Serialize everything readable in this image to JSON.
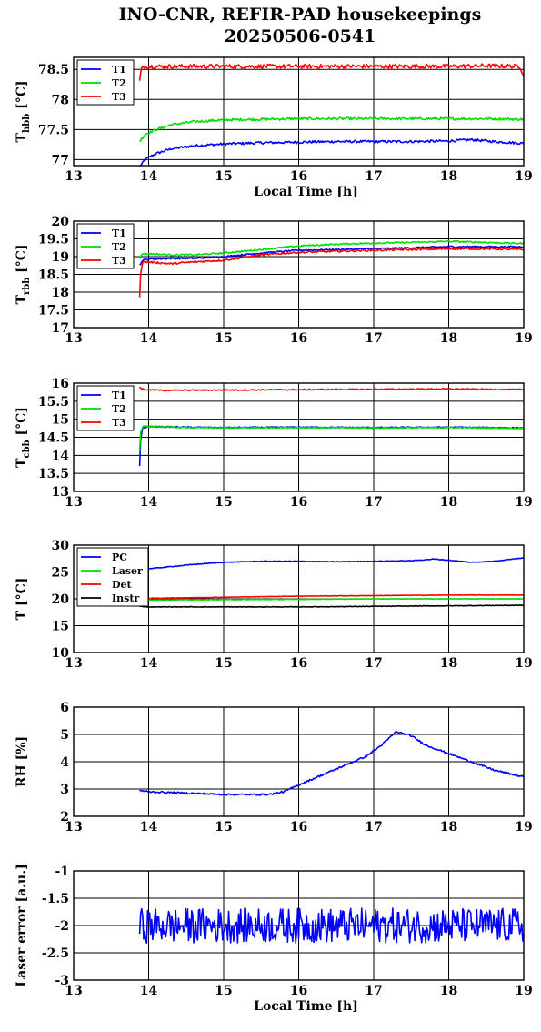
{
  "figure": {
    "title_line1": "INO-CNR, REFIR-PAD housekeepings",
    "title_line2": "20250506-0541"
  },
  "chart_data": [
    {
      "type": "line",
      "xlabel": "Local Time [h]",
      "ylabel": "T",
      "ylabel_sub": "hbb",
      "ylabel_unit": " [°C]",
      "xlim": [
        13,
        19
      ],
      "ylim": [
        76.9,
        78.7
      ],
      "x_ticks": [
        13,
        14,
        15,
        16,
        17,
        18,
        19
      ],
      "y_ticks": [
        77,
        77.5,
        78,
        78.5
      ],
      "y_tick_labels": [
        "77",
        "77.5",
        "78",
        "78.5"
      ],
      "grid": "y",
      "legend_position": "top-left",
      "colors": [
        "#0000ff",
        "#00dd00",
        "#ff0000"
      ],
      "series": [
        {
          "name": "T1",
          "x": [
            13.88,
            13.95,
            14.1,
            14.3,
            14.6,
            15,
            15.5,
            16,
            16.5,
            17,
            17.5,
            18,
            18.3,
            18.6,
            19
          ],
          "values": [
            76.87,
            77.0,
            77.1,
            77.18,
            77.23,
            77.26,
            77.28,
            77.29,
            77.3,
            77.3,
            77.3,
            77.31,
            77.33,
            77.3,
            77.27
          ],
          "noise": 0.02
        },
        {
          "name": "T2",
          "x": [
            13.88,
            13.95,
            14.1,
            14.3,
            14.6,
            15,
            15.5,
            16,
            16.5,
            17,
            17.5,
            18,
            18.5,
            19
          ],
          "values": [
            77.3,
            77.42,
            77.5,
            77.58,
            77.63,
            77.66,
            77.67,
            77.68,
            77.68,
            77.68,
            77.68,
            77.68,
            77.68,
            77.67
          ],
          "noise": 0.02
        },
        {
          "name": "T3",
          "x": [
            13.88,
            13.9,
            13.95,
            14.2,
            15,
            16,
            17,
            18,
            18.5,
            18.95,
            19
          ],
          "values": [
            78.3,
            78.5,
            78.55,
            78.55,
            78.55,
            78.55,
            78.55,
            78.55,
            78.56,
            78.55,
            78.4
          ],
          "noise": 0.035
        }
      ]
    },
    {
      "type": "line",
      "xlabel": "",
      "ylabel": "T",
      "ylabel_sub": "rbb",
      "ylabel_unit": " [°C]",
      "xlim": [
        13,
        19
      ],
      "ylim": [
        17,
        20
      ],
      "x_ticks": [
        13,
        14,
        15,
        16,
        17,
        18,
        19
      ],
      "y_ticks": [
        17,
        17.5,
        18,
        18.5,
        19,
        19.5,
        20
      ],
      "y_tick_labels": [
        "17",
        "17.5",
        "18",
        "18.5",
        "19",
        "19.5",
        "20"
      ],
      "grid": "y",
      "legend_position": "top-left",
      "colors": [
        "#0000ff",
        "#00dd00",
        "#ff0000"
      ],
      "series": [
        {
          "name": "T1",
          "x": [
            13.88,
            13.92,
            14.0,
            14.3,
            14.6,
            15,
            15.5,
            16,
            16.5,
            17,
            17.5,
            18,
            18.5,
            19
          ],
          "values": [
            18.75,
            18.9,
            18.93,
            18.95,
            18.95,
            19.0,
            19.1,
            19.18,
            19.2,
            19.22,
            19.25,
            19.28,
            19.28,
            19.28
          ],
          "noise": 0.02
        },
        {
          "name": "T2",
          "x": [
            13.88,
            13.92,
            14.0,
            14.3,
            14.6,
            15,
            15.5,
            16,
            16.5,
            17,
            17.5,
            18,
            18.5,
            19
          ],
          "values": [
            18.95,
            19.08,
            19.08,
            19.05,
            19.05,
            19.1,
            19.2,
            19.3,
            19.35,
            19.38,
            19.4,
            19.43,
            19.4,
            19.37
          ],
          "noise": 0.02
        },
        {
          "name": "T3",
          "x": [
            13.88,
            13.89,
            13.92,
            14.0,
            14.3,
            14.6,
            15,
            15.5,
            16,
            16.5,
            17,
            17.5,
            18,
            18.5,
            19
          ],
          "values": [
            17.85,
            18.5,
            18.85,
            18.85,
            18.8,
            18.85,
            18.9,
            19.05,
            19.12,
            19.15,
            19.18,
            19.2,
            19.22,
            19.22,
            19.2
          ],
          "noise": 0.025
        }
      ]
    },
    {
      "type": "line",
      "xlabel": "",
      "ylabel": "T",
      "ylabel_sub": "cbb",
      "ylabel_unit": " [°C]",
      "xlim": [
        13,
        19
      ],
      "ylim": [
        13,
        16
      ],
      "x_ticks": [
        13,
        14,
        15,
        16,
        17,
        18,
        19
      ],
      "y_ticks": [
        13,
        13.5,
        14,
        14.5,
        15,
        15.5,
        16
      ],
      "y_tick_labels": [
        "13",
        "13.5",
        "14",
        "14.5",
        "15",
        "15.5",
        "16"
      ],
      "grid": "y",
      "legend_position": "top-left",
      "colors": [
        "#0000ff",
        "#00dd00",
        "#ff0000"
      ],
      "series": [
        {
          "name": "T1",
          "x": [
            13.88,
            13.89,
            13.92,
            14.0,
            14.5,
            15,
            16,
            17,
            18,
            19
          ],
          "values": [
            13.7,
            14.4,
            14.75,
            14.8,
            14.78,
            14.77,
            14.78,
            14.77,
            14.78,
            14.76
          ],
          "noise": 0.015
        },
        {
          "name": "T2",
          "x": [
            13.88,
            13.89,
            13.92,
            14.0,
            14.5,
            15,
            16,
            17,
            18,
            19
          ],
          "values": [
            14.1,
            14.6,
            14.8,
            14.8,
            14.77,
            14.76,
            14.77,
            14.76,
            14.77,
            14.75
          ],
          "noise": 0.015
        },
        {
          "name": "T3",
          "x": [
            13.88,
            13.9,
            13.95,
            14.2,
            15,
            16,
            17,
            18,
            19
          ],
          "values": [
            15.9,
            15.85,
            15.82,
            15.8,
            15.81,
            15.82,
            15.83,
            15.84,
            15.82
          ],
          "noise": 0.015
        }
      ]
    },
    {
      "type": "line",
      "xlabel": "",
      "ylabel": "T [°C]",
      "ylabel_sub": "",
      "ylabel_unit": "",
      "xlim": [
        13,
        19
      ],
      "ylim": [
        10,
        30
      ],
      "x_ticks": [
        13,
        14,
        15,
        16,
        17,
        18,
        19
      ],
      "y_ticks": [
        10,
        15,
        20,
        25,
        30
      ],
      "y_tick_labels": [
        "10",
        "15",
        "20",
        "25",
        "30"
      ],
      "grid": "y",
      "legend_position": "top-left",
      "colors": [
        "#0000ff",
        "#00dd00",
        "#ff0000",
        "#000000"
      ],
      "series": [
        {
          "name": "PC",
          "x": [
            13.88,
            14.0,
            14.3,
            14.6,
            15,
            15.5,
            16,
            16.5,
            17,
            17.5,
            17.8,
            18.0,
            18.3,
            18.6,
            18.9,
            19
          ],
          "values": [
            25.5,
            25.6,
            26.0,
            26.4,
            26.8,
            27.0,
            27.0,
            26.9,
            27.0,
            27.1,
            27.4,
            27.2,
            26.8,
            27.0,
            27.5,
            27.6
          ],
          "noise": 0.06
        },
        {
          "name": "Laser",
          "x": [
            13.88,
            14.0,
            15,
            16,
            17,
            18,
            19
          ],
          "values": [
            19.8,
            19.8,
            19.85,
            19.9,
            20.0,
            20.0,
            20.0
          ],
          "noise": 0.04
        },
        {
          "name": "Det",
          "x": [
            13.88,
            14.0,
            15,
            16,
            17,
            18,
            19
          ],
          "values": [
            20.0,
            20.1,
            20.3,
            20.5,
            20.6,
            20.7,
            20.7
          ],
          "noise": 0.04
        },
        {
          "name": "Instr",
          "x": [
            13.88,
            14.0,
            15,
            16,
            17,
            18,
            19
          ],
          "values": [
            18.6,
            18.5,
            18.5,
            18.5,
            18.6,
            18.7,
            18.8
          ],
          "noise": 0.05
        }
      ]
    },
    {
      "type": "line",
      "xlabel": "",
      "ylabel": "RH [%]",
      "ylabel_sub": "",
      "ylabel_unit": "",
      "xlim": [
        13,
        19
      ],
      "ylim": [
        2,
        6
      ],
      "x_ticks": [
        13,
        14,
        15,
        16,
        17,
        18,
        19
      ],
      "y_ticks": [
        2,
        3,
        4,
        5,
        6
      ],
      "y_tick_labels": [
        "2",
        "3",
        "4",
        "5",
        "6"
      ],
      "grid": "y",
      "legend_position": "none",
      "colors": [
        "#0000ff"
      ],
      "series": [
        {
          "name": "",
          "x": [
            13.88,
            14.0,
            14.5,
            15.0,
            15.3,
            15.6,
            15.8,
            16.0,
            16.3,
            16.6,
            16.9,
            17.1,
            17.3,
            17.5,
            17.7,
            18.0,
            18.3,
            18.6,
            18.9,
            19
          ],
          "values": [
            2.95,
            2.9,
            2.85,
            2.8,
            2.8,
            2.8,
            2.9,
            3.15,
            3.5,
            3.85,
            4.2,
            4.6,
            5.1,
            4.95,
            4.6,
            4.3,
            4.0,
            3.7,
            3.5,
            3.45
          ],
          "noise": 0.03
        }
      ]
    },
    {
      "type": "line",
      "xlabel": "Local Time [h]",
      "ylabel": "Laser error [a.u.]",
      "ylabel_sub": "",
      "ylabel_unit": "",
      "xlim": [
        13,
        19
      ],
      "ylim": [
        -3,
        -1
      ],
      "x_ticks": [
        13,
        14,
        15,
        16,
        17,
        18,
        19
      ],
      "y_ticks": [
        -3,
        -2.5,
        -2,
        -1.5,
        -1
      ],
      "y_tick_labels": [
        "-3",
        "-2.5",
        "-2",
        "-1.5",
        "-1"
      ],
      "grid": "y",
      "legend_position": "none",
      "colors": [
        "#0000ff"
      ],
      "series": [
        {
          "name": "",
          "x": [
            13.88,
            19.0
          ],
          "values": [
            -2.0,
            -2.0
          ],
          "noise": 0.32
        }
      ]
    }
  ]
}
